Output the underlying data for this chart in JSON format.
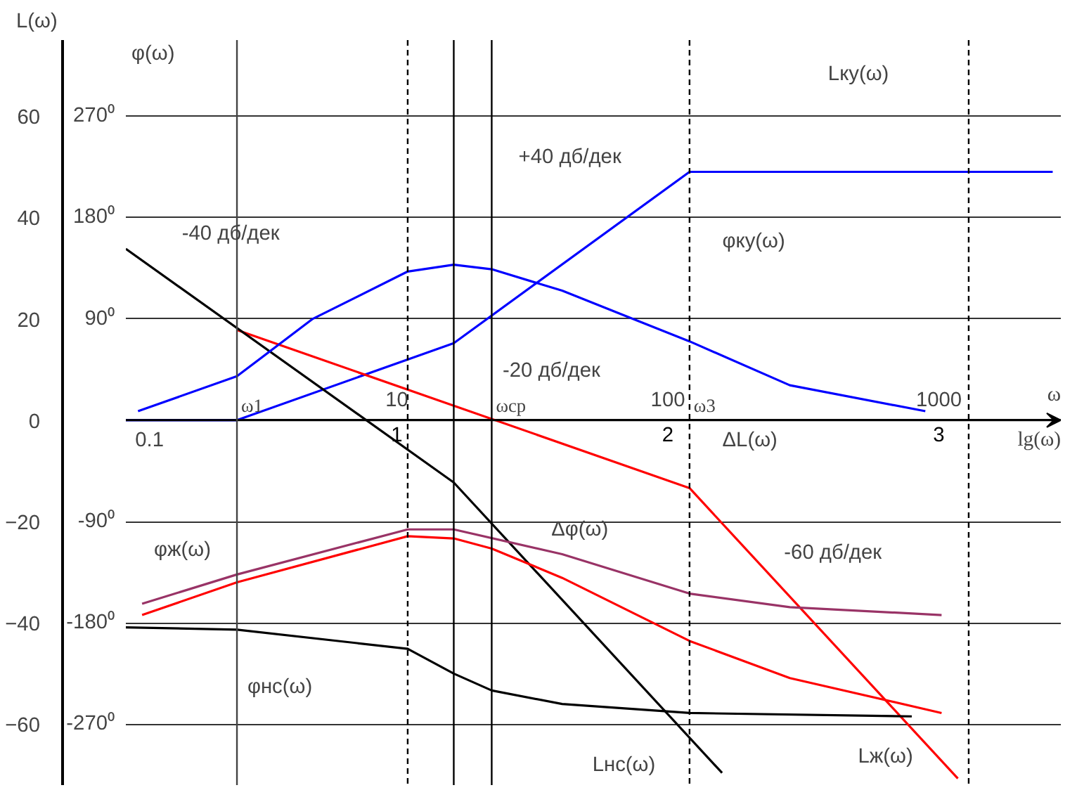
{
  "chart_data": {
    "type": "line",
    "ylabel": "L(ω)",
    "y2label": "φ(ω)",
    "xlabel": "lg(ω)",
    "xlim": [
      0,
      3.45
    ],
    "xticks": [
      1,
      2,
      3
    ],
    "ylim": [
      -72,
      75
    ],
    "yticks": [
      -60,
      -40,
      -20,
      0,
      20,
      40,
      60
    ],
    "y2lim": [
      -324,
      337.5
    ],
    "y2ticks": [
      {
        "value": -270,
        "label": "-270⁰"
      },
      {
        "value": -180,
        "label": "-180⁰"
      },
      {
        "value": -90,
        "label": "-90⁰"
      },
      {
        "value": 90,
        "label": "90⁰"
      },
      {
        "value": 180,
        "label": "180⁰"
      },
      {
        "value": 270,
        "label": "270⁰"
      }
    ],
    "grid": "y",
    "series": [
      {
        "color": "#0000ff",
        "x": [
          0,
          0.41,
          1.21,
          2.08,
          3.42
        ],
        "values": [
          0,
          0,
          15.2,
          49,
          49
        ]
      },
      {
        "color": "#ff0000",
        "x": [
          0.41,
          2.08,
          3.07
        ],
        "values": [
          17.8,
          -13.4,
          -70.7
        ]
      },
      {
        "color": "#000000",
        "x": [
          0,
          1.21,
          2.2
        ],
        "values": [
          33.8,
          -12.3,
          -69.6
        ]
      },
      {
        "color": "#0000ff",
        "axis": "y2",
        "x": [
          0.045,
          0.41,
          0.69,
          1.04,
          1.21,
          1.35,
          1.61,
          1.86,
          2.08,
          2.45,
          2.95
        ],
        "values": [
          8,
          39,
          90,
          132,
          138,
          134,
          115,
          91,
          70,
          31,
          8
        ]
      },
      {
        "color": "#993366",
        "axis": "y2",
        "x": [
          0.06,
          0.41,
          1.04,
          1.21,
          1.61,
          2.08,
          2.45,
          3.01
        ],
        "values": [
          -163,
          -137,
          -97,
          -97,
          -119,
          -154,
          -166,
          -173
        ]
      },
      {
        "color": "#ff0000",
        "axis": "y2",
        "x": [
          0.06,
          0.41,
          1.04,
          1.21,
          1.35,
          1.61,
          2.08,
          2.45,
          3.01
        ],
        "values": [
          -173,
          -144,
          -103,
          -105,
          -114,
          -140,
          -196,
          -229,
          -260
        ]
      },
      {
        "color": "#000000",
        "axis": "y2",
        "x": [
          0,
          0.41,
          1.04,
          1.21,
          1.35,
          1.61,
          2.08,
          2.9
        ],
        "values": [
          -184,
          -186,
          -203,
          -225,
          -240,
          -252,
          -260,
          -263
        ]
      }
    ],
    "ref_lines": [
      {
        "axis": "x",
        "value": 0.41,
        "label": "ω1",
        "color": "#444444",
        "line_style": "solid"
      },
      {
        "axis": "x",
        "value": 1.04,
        "color": "#000000",
        "line_style": "dashed"
      },
      {
        "axis": "x",
        "value": 1.21,
        "color": "#000000",
        "line_style": "solid"
      },
      {
        "axis": "x",
        "value": 1.35,
        "label": "ωср",
        "color": "#000000",
        "line_style": "solid"
      },
      {
        "axis": "x",
        "value": 2.08,
        "label": "ω3",
        "color": "#000000",
        "line_style": "dashed"
      },
      {
        "axis": "x",
        "value": 3.11,
        "color": "#000000",
        "line_style": "dashed"
      }
    ],
    "x2label": "ω",
    "x2lim": [
      1,
      2818
    ],
    "log": "x2",
    "x2ticks": [
      10,
      100,
      1000
    ],
    "annotations": [
      "Lку(ω)",
      "+40 дб/дек",
      "-40 дб/дек",
      "φку(ω)",
      "-20 дб/дек",
      "ΔL(ω)",
      "Δφ(ω)",
      "-60 дб/дек",
      "φж(ω)",
      "φнс(ω)",
      "Lнс(ω)",
      "Lж(ω)",
      "0.1"
    ]
  }
}
